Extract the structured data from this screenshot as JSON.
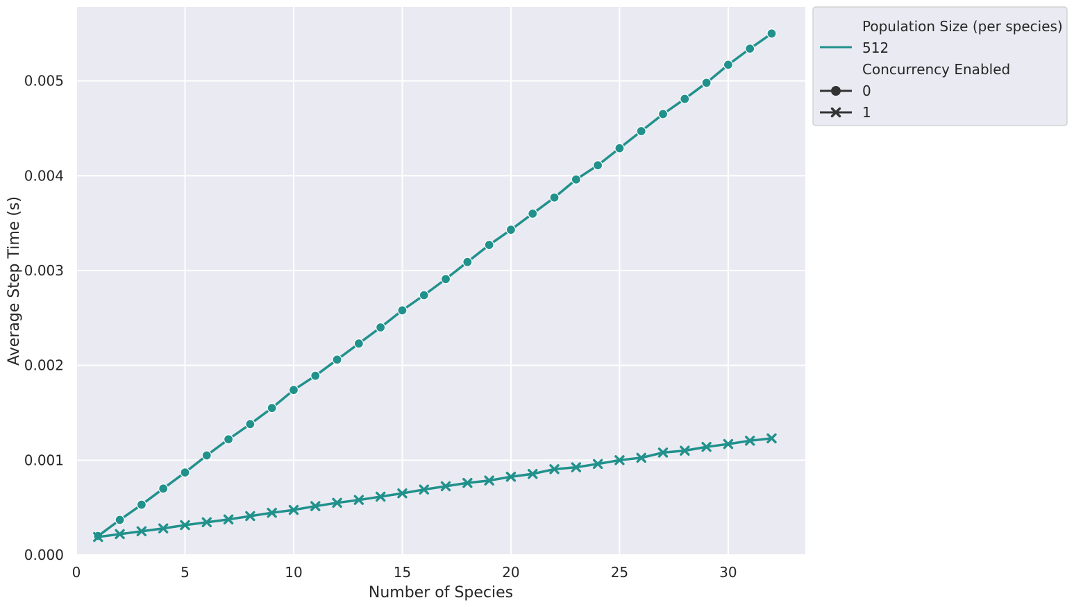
{
  "chart_data": {
    "type": "line",
    "xlabel": "Number of Species",
    "ylabel": "Average Step Time (s)",
    "xlim": [
      0,
      33.55
    ],
    "ylim": [
      0,
      0.00578
    ],
    "xticks": [
      0,
      5,
      10,
      15,
      20,
      25,
      30
    ],
    "xtick_labels": [
      "0",
      "5",
      "10",
      "15",
      "20",
      "25",
      "30"
    ],
    "yticks": [
      0,
      0.001,
      0.002,
      0.003,
      0.004,
      0.005
    ],
    "ytick_labels": [
      "0.000",
      "0.001",
      "0.002",
      "0.003",
      "0.004",
      "0.005"
    ],
    "grid": true,
    "legend_placement": "outside-upper-right",
    "colors": {
      "line": "#21918c",
      "plot_bg": "#eaeaf2",
      "grid": "#ffffff",
      "legend_marker": "#333333"
    },
    "x": [
      1,
      2,
      3,
      4,
      5,
      6,
      7,
      8,
      9,
      10,
      11,
      12,
      13,
      14,
      15,
      16,
      17,
      18,
      19,
      20,
      21,
      22,
      23,
      24,
      25,
      26,
      27,
      28,
      29,
      30,
      31,
      32
    ],
    "series": [
      {
        "name": "0",
        "marker": "circle",
        "values": [
          0.0002,
          0.00037,
          0.00053,
          0.0007,
          0.00087,
          0.00105,
          0.00122,
          0.00138,
          0.00155,
          0.00174,
          0.00189,
          0.00206,
          0.00223,
          0.0024,
          0.00258,
          0.00274,
          0.00291,
          0.00309,
          0.00327,
          0.00343,
          0.0036,
          0.00377,
          0.00396,
          0.00411,
          0.00429,
          0.00447,
          0.00465,
          0.00481,
          0.00498,
          0.00517,
          0.00534,
          0.0055
        ]
      },
      {
        "name": "1",
        "marker": "x",
        "values": [
          0.00019,
          0.00022,
          0.00025,
          0.00028,
          0.000315,
          0.000345,
          0.000375,
          0.00041,
          0.000445,
          0.000475,
          0.000515,
          0.00055,
          0.00058,
          0.000615,
          0.00065,
          0.00069,
          0.000725,
          0.00076,
          0.000785,
          0.000825,
          0.000855,
          0.000905,
          0.000925,
          0.00096,
          0.001,
          0.001025,
          0.00108,
          0.0011,
          0.00114,
          0.00117,
          0.001205,
          0.00123
        ]
      }
    ],
    "legend": {
      "hue_title": "Population Size (per species)",
      "hue_entries": [
        "512"
      ],
      "style_title": "Concurrency Enabled",
      "style_entries": [
        "0",
        "1"
      ]
    }
  }
}
